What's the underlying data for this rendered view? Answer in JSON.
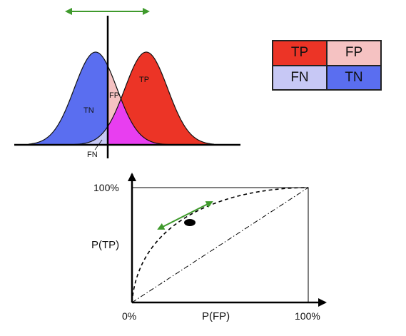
{
  "distribution": {
    "labels": {
      "tp": "TP",
      "tn": "TN",
      "fp": "FP",
      "fn": "FN"
    },
    "colors": {
      "positive": "#ec3426",
      "negative": "#5a6ef0",
      "fp_region": "#f5c2c2",
      "fn_region": "#c7c8f5",
      "overlap": "#e83ef0"
    },
    "arrow_color": "#3f9a2c"
  },
  "confusion_matrix": {
    "cells": [
      {
        "label": "TP",
        "color": "#ec3426"
      },
      {
        "label": "FP",
        "color": "#f5c2c2"
      },
      {
        "label": "FN",
        "color": "#c7c8f5"
      },
      {
        "label": "TN",
        "color": "#5a6ef0"
      }
    ]
  },
  "roc": {
    "y_label": "P(TP)",
    "x_label": "P(FP)",
    "y_max_label": "100%",
    "origin_label": "0%",
    "x_max_label": "100%",
    "arrow_color": "#3f9a2c"
  }
}
